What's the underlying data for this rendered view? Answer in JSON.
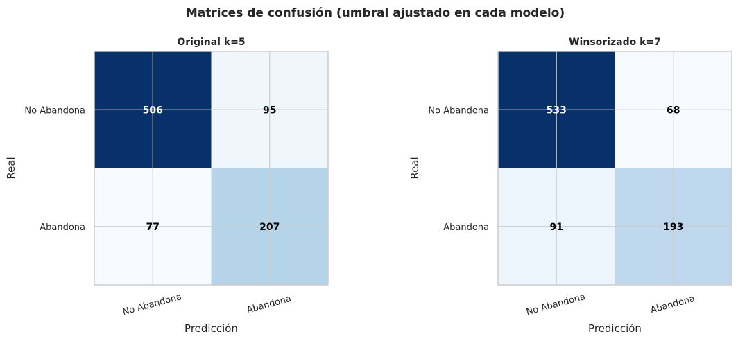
{
  "title": "Matrices de confusión (umbral ajustado en cada modelo)",
  "chart_data": [
    {
      "type": "heatmap",
      "title": "Original k=5",
      "xlabel": "Predicción",
      "ylabel": "Real",
      "x_categories": [
        "No Abandona",
        "Abandona"
      ],
      "y_categories": [
        "No Abandona",
        "Abandona"
      ],
      "values": [
        [
          506,
          95
        ],
        [
          77,
          207
        ]
      ],
      "colormap": "Blues",
      "grid": true
    },
    {
      "type": "heatmap",
      "title": "Winsorizado k=7",
      "xlabel": "Predicción",
      "ylabel": "Real",
      "x_categories": [
        "No Abandona",
        "Abandona"
      ],
      "y_categories": [
        "No Abandona",
        "Abandona"
      ],
      "values": [
        [
          533,
          68
        ],
        [
          91,
          193
        ]
      ],
      "colormap": "Blues",
      "grid": true
    }
  ]
}
